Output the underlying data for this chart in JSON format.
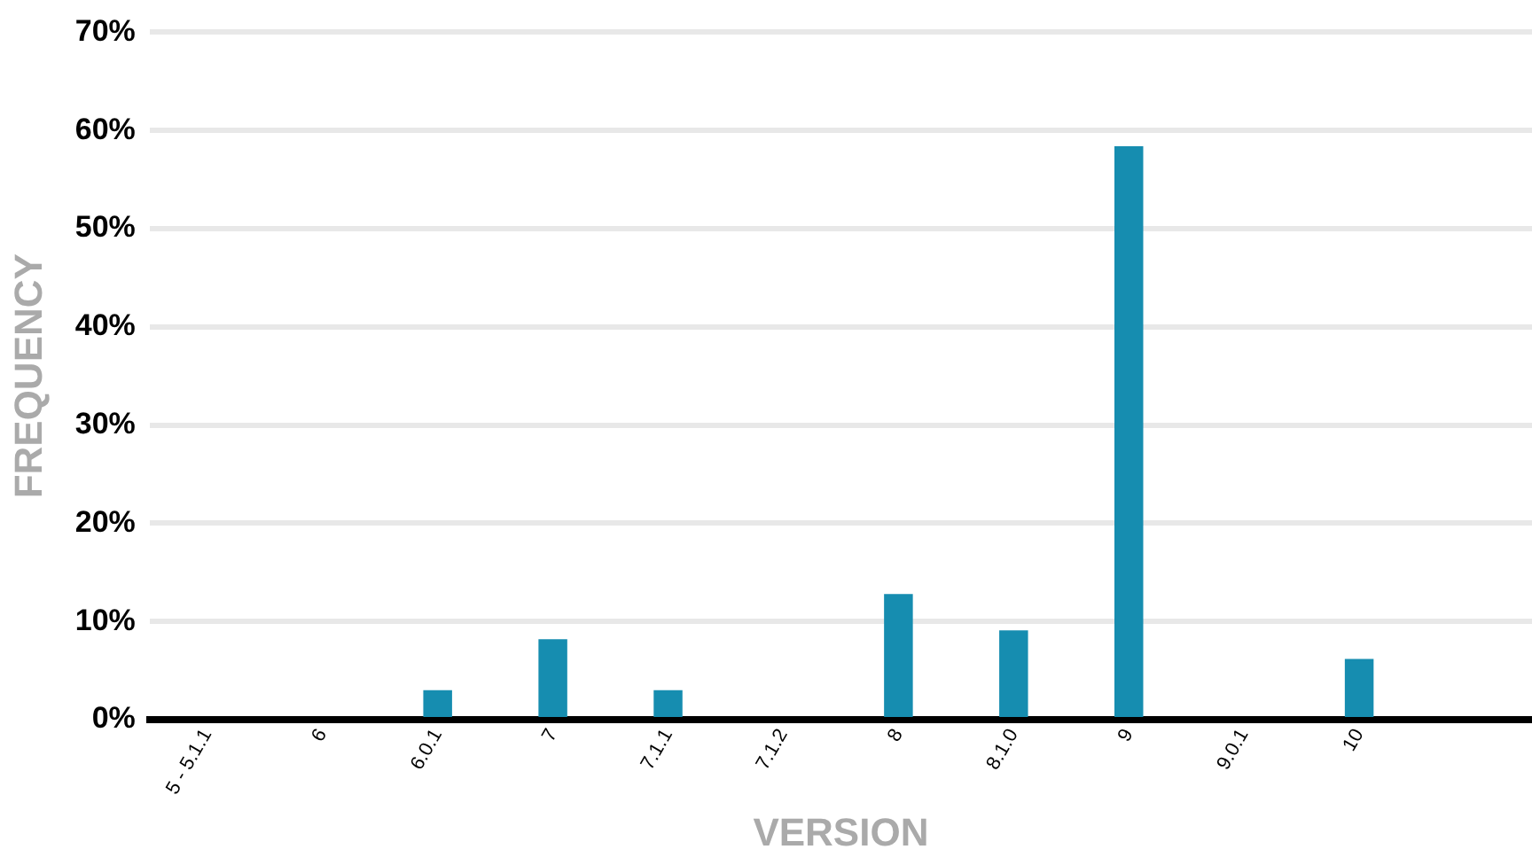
{
  "chart_data": {
    "type": "bar",
    "xlabel": "VERSION",
    "ylabel": "FREQUENCY",
    "categories": [
      "5 - 5.1.1",
      "6",
      "6.0.1",
      "7",
      "7.1.1",
      "7.1.2",
      "8",
      "8.1.0",
      "9",
      "9.0.1",
      "10",
      null
    ],
    "values": [
      0,
      0,
      3.0,
      8.2,
      3.0,
      0,
      12.8,
      9.1,
      58.4,
      0,
      6.2,
      null
    ],
    "color": "#168db0",
    "ylim": [
      0,
      70
    ],
    "yticks": [
      {
        "value": 0,
        "label": "0%"
      },
      {
        "value": 10,
        "label": "10%"
      },
      {
        "value": 20,
        "label": "20%"
      },
      {
        "value": 30,
        "label": "30%"
      },
      {
        "value": 40,
        "label": "40%"
      },
      {
        "value": 50,
        "label": "50%"
      },
      {
        "value": 60,
        "label": "60%"
      },
      {
        "value": 70,
        "label": "70%"
      }
    ],
    "grid": "y",
    "legend": false
  }
}
